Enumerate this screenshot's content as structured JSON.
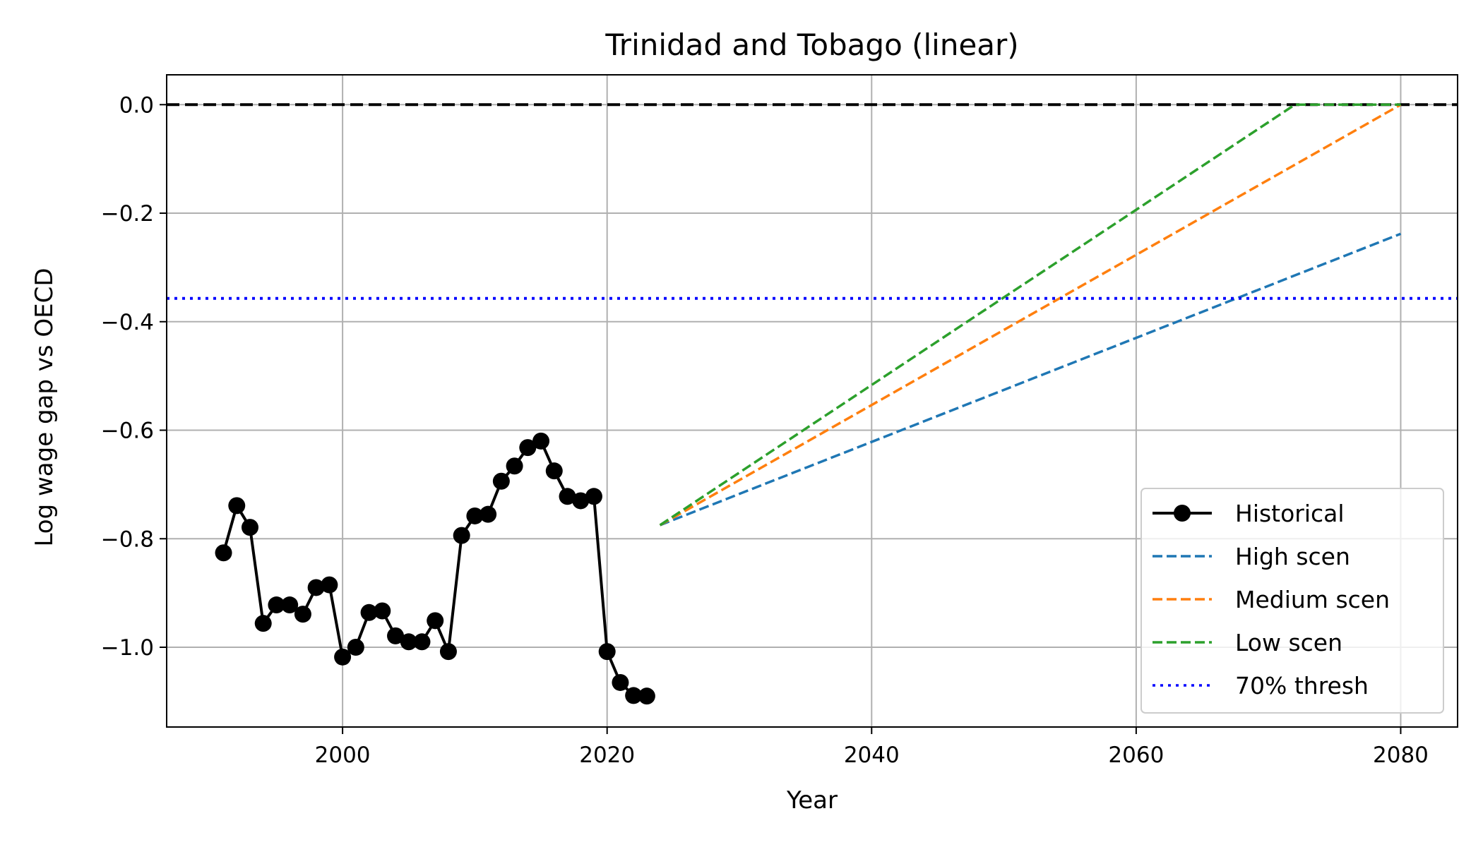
{
  "chart_data": {
    "type": "line",
    "title": "Trinidad and Tobago (linear)",
    "xlabel": "Year",
    "ylabel": "Log wage gap vs OECD",
    "xlim": [
      1986.7,
      2084.3
    ],
    "ylim": [
      -1.147,
      0.055
    ],
    "xticks": [
      2000,
      2020,
      2040,
      2060,
      2080
    ],
    "yticks": [
      0.0,
      -0.2,
      -0.4,
      -0.6,
      -0.8,
      -1.0
    ],
    "ytick_labels": [
      "0.0",
      "−0.2",
      "−0.4",
      "−0.6",
      "−0.8",
      "−1.0"
    ],
    "grid": true,
    "legend_position": "lower-right",
    "series": [
      {
        "name": "Historical",
        "style": "solid-marker",
        "color": "#000000",
        "x": [
          1991,
          1992,
          1993,
          1994,
          1995,
          1996,
          1997,
          1998,
          1999,
          2000,
          2001,
          2002,
          2003,
          2004,
          2005,
          2006,
          2007,
          2008,
          2009,
          2010,
          2011,
          2012,
          2013,
          2014,
          2015,
          2016,
          2017,
          2018,
          2019,
          2020,
          2021,
          2022,
          2023
        ],
        "y": [
          -0.826,
          -0.739,
          -0.779,
          -0.956,
          -0.922,
          -0.922,
          -0.939,
          -0.89,
          -0.885,
          -1.018,
          -1.0,
          -0.936,
          -0.933,
          -0.979,
          -0.99,
          -0.99,
          -0.951,
          -1.008,
          -0.794,
          -0.758,
          -0.755,
          -0.694,
          -0.666,
          -0.632,
          -0.62,
          -0.675,
          -0.722,
          -0.73,
          -0.722,
          -1.008,
          -1.065,
          -1.089,
          -1.09
        ]
      },
      {
        "name": "High scen",
        "style": "dashed",
        "color": "#1f77b4",
        "x": [
          2024,
          2080
        ],
        "y": [
          -0.775,
          -0.238
        ]
      },
      {
        "name": "Medium scen",
        "style": "dashed",
        "color": "#ff7f0e",
        "x": [
          2024,
          2080
        ],
        "y": [
          -0.775,
          0.0
        ]
      },
      {
        "name": "Low scen",
        "style": "dashed",
        "color": "#2ca02c",
        "x": [
          2024,
          2072,
          2080
        ],
        "y": [
          -0.775,
          0.0,
          0.0
        ]
      },
      {
        "name": "70% thresh",
        "style": "dotted-hline",
        "color": "#0000ff",
        "y_value": -0.357
      }
    ],
    "reference_lines": [
      {
        "style": "dashed-hline",
        "color": "#000000",
        "y_value": 0.0
      }
    ]
  }
}
